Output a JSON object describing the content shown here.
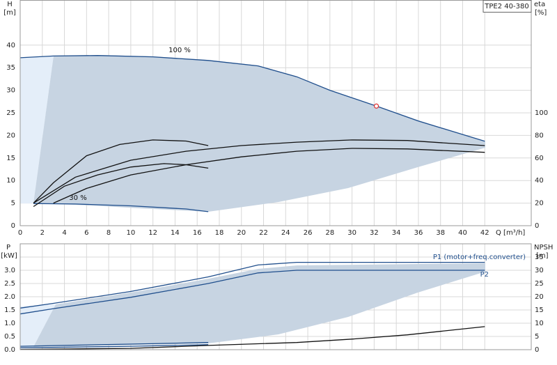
{
  "chart_data": [
    {
      "type": "line",
      "title": "TPE2 40-380",
      "xlabel": "Q [m³/h]",
      "ylabel": "H",
      "ylabel_unit": "[m]",
      "y2label": "eta",
      "y2label_unit": "[%]",
      "xlim": [
        0,
        46.2
      ],
      "xticks": [
        0,
        2,
        4,
        6,
        8,
        10,
        12,
        14,
        16,
        18,
        20,
        22,
        24,
        26,
        28,
        30,
        32,
        34,
        36,
        38,
        40,
        42
      ],
      "ylim": [
        0,
        50
      ],
      "yticks": [
        0,
        5,
        10,
        15,
        20,
        25,
        30,
        35,
        40
      ],
      "y2lim": [
        0,
        200
      ],
      "y2ticks": [
        0,
        20,
        40,
        60,
        80,
        100
      ],
      "grid": true,
      "grid_axis": "y",
      "series": [
        {
          "name": "100 %",
          "color": "#1f4e8c",
          "x": [
            0,
            3,
            7,
            12,
            17,
            21.5,
            25,
            28,
            32.2,
            36,
            42
          ],
          "values": [
            37.2,
            37.6,
            37.7,
            37.4,
            36.6,
            35.4,
            33,
            30,
            26.5,
            23.2,
            18.7
          ]
        },
        {
          "name": "30 %",
          "color": "#1f4e8c",
          "x": [
            1.2,
            5,
            10,
            15,
            17
          ],
          "values": [
            4.9,
            4.8,
            4.4,
            3.7,
            3.1
          ]
        },
        {
          "color": "#111111",
          "axis": "y2",
          "x": [
            1.2,
            3,
            6,
            9,
            12,
            15,
            17
          ],
          "values": [
            20,
            38,
            62,
            72,
            76,
            75,
            71
          ]
        },
        {
          "color": "#111111",
          "axis": "y2",
          "x": [
            1.2,
            4,
            7,
            10,
            13,
            15,
            17
          ],
          "values": [
            17,
            35,
            45,
            52,
            55,
            54,
            51
          ]
        },
        {
          "color": "#111111",
          "axis": "y2",
          "x": [
            1.2,
            5,
            10,
            15,
            20,
            25,
            30,
            35,
            42
          ],
          "values": [
            20,
            43,
            58,
            66,
            71,
            74,
            76,
            75.5,
            71
          ]
        },
        {
          "color": "#111111",
          "axis": "y2",
          "x": [
            3,
            6,
            10,
            15,
            20,
            25,
            30,
            35,
            42
          ],
          "values": [
            20,
            33,
            45,
            54,
            61,
            66,
            68.5,
            68,
            65
          ]
        }
      ],
      "operating_point": {
        "x": 32.2,
        "y": 26.5,
        "color": "#e03030"
      }
    },
    {
      "type": "line",
      "ylabel": "P",
      "ylabel_unit": "[kW]",
      "y2label": "NPSH",
      "y2label_unit": "[m]",
      "xlim": [
        0,
        46.2
      ],
      "ylim": [
        0,
        4
      ],
      "yticks": [
        {
          "value": 0,
          "label": "0.0"
        },
        0.5,
        {
          "value": 1,
          "label": "1.0"
        },
        1.5,
        {
          "value": 2,
          "label": "2.0"
        },
        2.5,
        {
          "value": 3,
          "label": "3.0"
        }
      ],
      "y2lim": [
        0,
        40
      ],
      "y2ticks": [
        0,
        5,
        10,
        15,
        20,
        25,
        30,
        35
      ],
      "grid": true,
      "grid_axis": "y2",
      "series": [
        {
          "name": "P1 (motor+freq.converter)",
          "color": "#1f4e8c",
          "x": [
            0,
            3,
            10,
            17,
            21.5,
            25,
            30,
            42
          ],
          "values": [
            1.57,
            1.75,
            2.2,
            2.75,
            3.2,
            3.3,
            3.3,
            3.3
          ]
        },
        {
          "name": "P2",
          "color": "#1f4e8c",
          "x": [
            0,
            3,
            10,
            17,
            21.5,
            25,
            30,
            42
          ],
          "values": [
            1.35,
            1.55,
            1.98,
            2.5,
            2.9,
            3.0,
            3.0,
            3.0
          ]
        },
        {
          "color": "#1f4e8c",
          "x": [
            0,
            5,
            10,
            17
          ],
          "values": [
            0.13,
            0.17,
            0.21,
            0.27
          ]
        },
        {
          "color": "#1f4e8c",
          "x": [
            0,
            5,
            10,
            17
          ],
          "values": [
            0.07,
            0.1,
            0.13,
            0.19
          ]
        },
        {
          "color": "#111111",
          "axis": "y2",
          "x": [
            0,
            10,
            17,
            25,
            30,
            35,
            42
          ],
          "values": [
            0.1,
            0.5,
            1.6,
            2.7,
            4,
            5.6,
            8.7
          ]
        }
      ]
    }
  ]
}
